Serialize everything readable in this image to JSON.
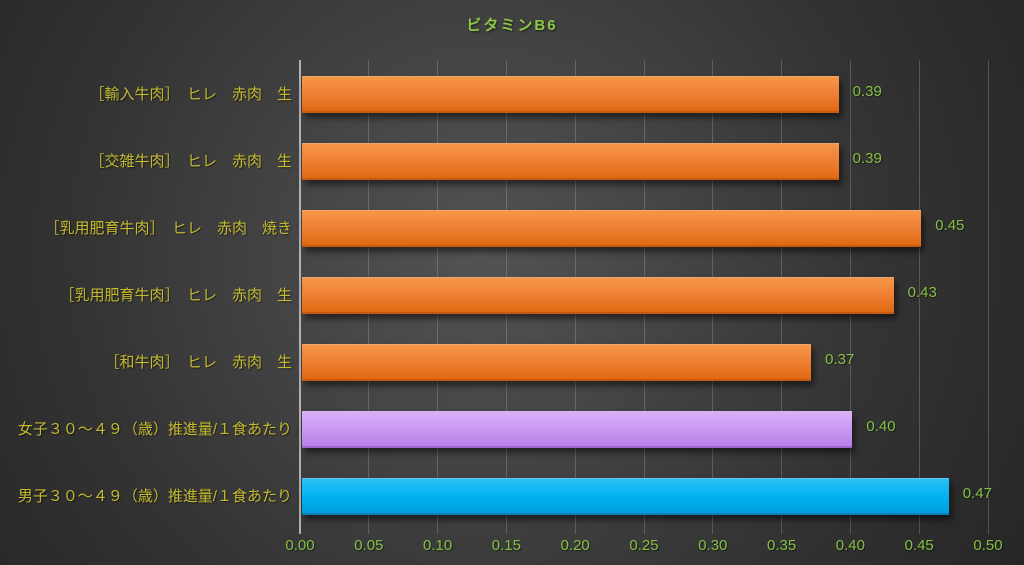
{
  "colors": {
    "title": "#8CC944",
    "category_label": "#C4BA30",
    "value_label": "#85C043",
    "tick_label": "#85C043"
  },
  "chart_data": {
    "type": "bar",
    "orientation": "horizontal",
    "title": "ビタミンB6",
    "categories": [
      "［輸入牛肉］　ヒレ　赤肉　生",
      "［交雑牛肉］　ヒレ　赤肉　生",
      "［乳用肥育牛肉］　ヒレ　赤肉　焼き",
      "［乳用肥育牛肉］　ヒレ　赤肉　生",
      "［和牛肉］　ヒレ　赤肉　生",
      "女子３０～４９（歳）推進量/１食あたり",
      "男子３０～４９（歳）推進量/１食あたり"
    ],
    "values": [
      0.39,
      0.39,
      0.45,
      0.43,
      0.37,
      0.4,
      0.47
    ],
    "value_labels": [
      "0.39",
      "0.39",
      "0.45",
      "0.43",
      "0.37",
      "0.40",
      "0.47"
    ],
    "series_color_keys": [
      "orange",
      "orange",
      "orange",
      "orange",
      "orange",
      "purple",
      "cyan"
    ],
    "palette": {
      "orange": {
        "top": "#F79646",
        "main": "#ED7D31",
        "bottom": "#E06A12",
        "edge": "#C55A11"
      },
      "purple": {
        "top": "#D9AFF8",
        "main": "#C897F1",
        "bottom": "#BA80E9",
        "edge": "#9B67CC"
      },
      "cyan": {
        "top": "#2BC0F5",
        "main": "#00B0F0",
        "bottom": "#009EDC",
        "edge": "#0084B8"
      }
    },
    "x_ticks": [
      "0.00",
      "0.05",
      "0.10",
      "0.15",
      "0.20",
      "0.25",
      "0.30",
      "0.35",
      "0.40",
      "0.45",
      "0.50"
    ],
    "xlim": [
      0,
      0.5
    ],
    "xlabel": "",
    "ylabel": "",
    "grid": true,
    "legend": false
  }
}
